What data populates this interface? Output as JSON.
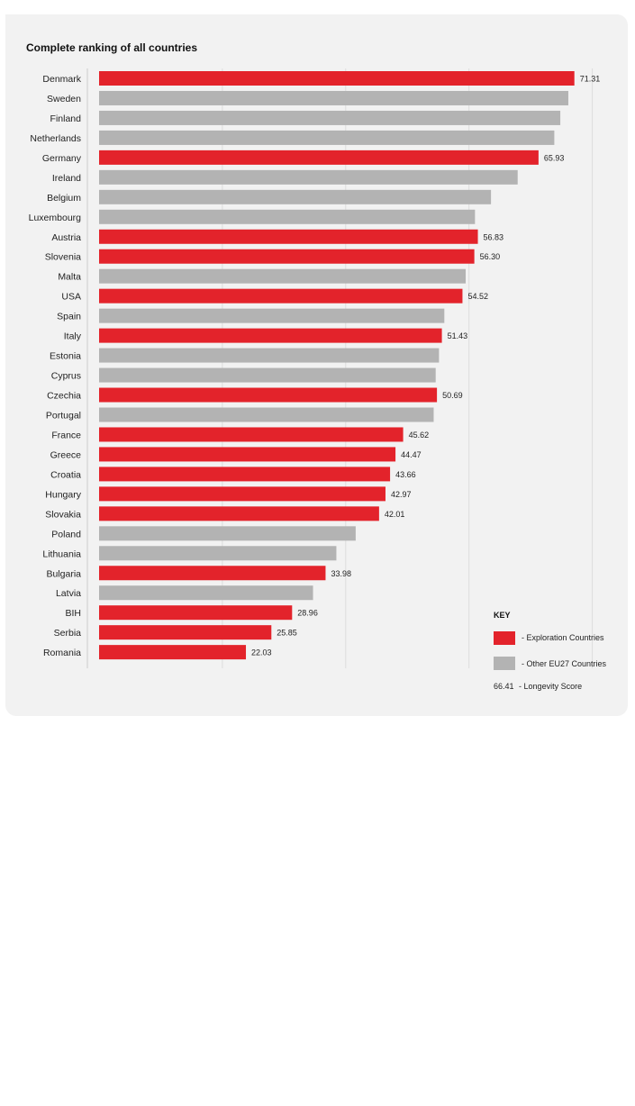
{
  "title": "Complete ranking of all countries",
  "colors": {
    "exploration": "#e3232b",
    "other": "#b3b3b3",
    "grid": "#dddddd"
  },
  "key": {
    "title": "KEY",
    "exploration_label": "- Exploration Countries",
    "other_label": "- Other EU27 Countries",
    "score_sample": "66.41",
    "score_label": "- Longevity Score"
  },
  "chart_data": {
    "type": "bar",
    "orientation": "horizontal",
    "title": "Complete ranking of all countries",
    "xlim": [
      0,
      100
    ],
    "grid": true,
    "legend_position": "bottom-right",
    "categories": [
      "Denmark",
      "Sweden",
      "Finland",
      "Netherlands",
      "Germany",
      "Ireland",
      "Belgium",
      "Luxembourg",
      "Austria",
      "Slovenia",
      "Malta",
      "USA",
      "Spain",
      "Italy",
      "Estonia",
      "Cyprus",
      "Czechia",
      "Portugal",
      "France",
      "Greece",
      "Croatia",
      "Hungary",
      "Slovakia",
      "Poland",
      "Lithuania",
      "Bulgaria",
      "Latvia",
      "BIH",
      "Serbia",
      "Romania"
    ],
    "values": [
      71.31,
      70.4,
      69.2,
      68.3,
      65.93,
      62.8,
      58.8,
      56.4,
      56.83,
      56.3,
      55.0,
      54.52,
      51.8,
      51.43,
      51.0,
      50.5,
      50.69,
      50.2,
      45.62,
      44.47,
      43.66,
      42.97,
      42.01,
      38.5,
      35.6,
      33.98,
      32.1,
      28.96,
      25.85,
      22.03
    ],
    "groups": [
      "exploration",
      "other",
      "other",
      "other",
      "exploration",
      "other",
      "other",
      "other",
      "exploration",
      "exploration",
      "other",
      "exploration",
      "other",
      "exploration",
      "other",
      "other",
      "exploration",
      "other",
      "exploration",
      "exploration",
      "exploration",
      "exploration",
      "exploration",
      "other",
      "other",
      "exploration",
      "other",
      "exploration",
      "exploration",
      "exploration"
    ],
    "data_labels": [
      "71.31",
      "",
      "",
      "",
      "65.93",
      "",
      "",
      "",
      "56.83",
      "56.30",
      "",
      "54.52",
      "",
      "51.43",
      "",
      "",
      "50.69",
      "",
      "45.62",
      "44.47",
      "43.66",
      "42.97",
      "42.01",
      "",
      "",
      "33.98",
      "",
      "28.96",
      "25.85",
      "22.03"
    ],
    "series": [
      {
        "name": "Exploration Countries",
        "group": "exploration"
      },
      {
        "name": "Other EU27 Countries",
        "group": "other"
      }
    ]
  }
}
